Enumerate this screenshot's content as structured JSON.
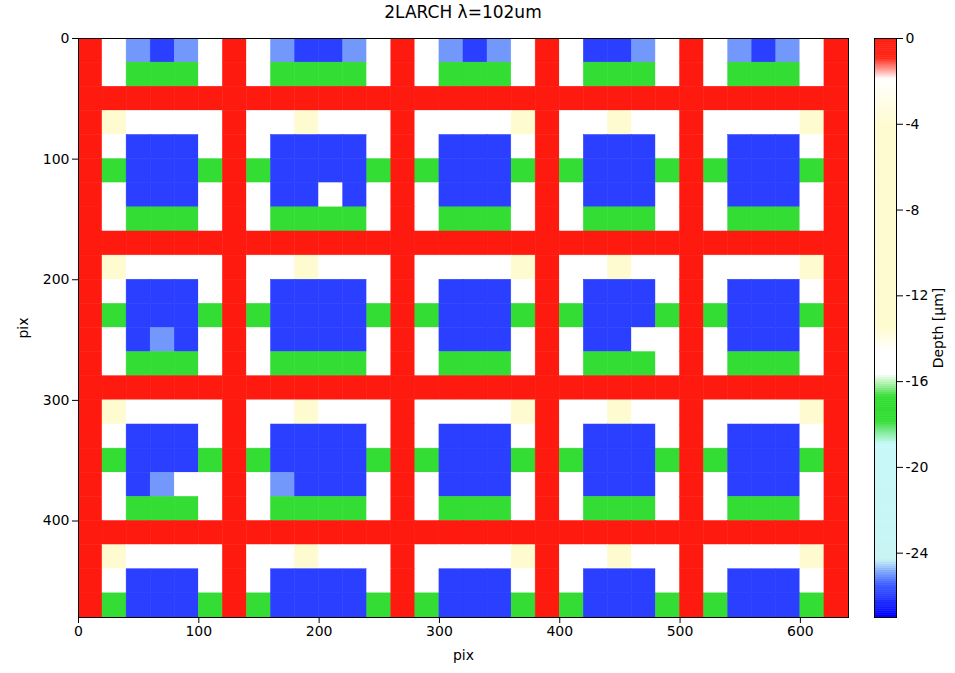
{
  "chart_data": {
    "type": "heatmap",
    "title": "2LARCH λ=102um",
    "xlabel": "pix",
    "ylabel": "pix",
    "xlim": [
      0,
      640
    ],
    "ylim": [
      480,
      0
    ],
    "xticks": [
      0,
      100,
      200,
      300,
      400,
      500,
      600
    ],
    "yticks": [
      0,
      100,
      200,
      300,
      400
    ],
    "cells": [
      [
        0,
        -15,
        -25,
        -26,
        -25,
        -15,
        0,
        -15,
        -25,
        -26,
        -26,
        -25,
        -15,
        0,
        -15,
        -25,
        -26,
        -25,
        -15,
        0,
        -15,
        -26,
        -26,
        -25,
        -15,
        0,
        -15,
        -25,
        -26,
        -25,
        -15,
        0
      ],
      [
        0,
        -15,
        -17,
        -17,
        -17,
        -15,
        0,
        -15,
        -17,
        -17,
        -17,
        -17,
        -15,
        0,
        -15,
        -17,
        -17,
        -17,
        -15,
        0,
        -15,
        -17,
        -17,
        -17,
        -15,
        0,
        -15,
        -17,
        -17,
        -17,
        -15,
        0
      ],
      [
        0,
        0,
        0,
        0,
        0,
        0,
        0,
        0,
        0,
        0,
        0,
        0,
        0,
        0,
        0,
        0,
        0,
        0,
        0,
        0,
        0,
        0,
        0,
        0,
        0,
        0,
        0,
        0,
        0,
        0,
        0,
        0
      ],
      [
        0,
        -8,
        -15,
        -15,
        -15,
        -15,
        0,
        -15,
        -15,
        -8,
        -15,
        -15,
        -15,
        0,
        -15,
        -15,
        -15,
        -15,
        -8,
        0,
        -15,
        -15,
        -8,
        -15,
        -15,
        0,
        -15,
        -15,
        -15,
        -15,
        -8,
        0
      ],
      [
        0,
        -15,
        -26,
        -26,
        -26,
        -15,
        0,
        -15,
        -26,
        -26,
        -26,
        -26,
        -15,
        0,
        -15,
        -26,
        -26,
        -26,
        -15,
        0,
        -15,
        -26,
        -26,
        -26,
        -15,
        0,
        -15,
        -26,
        -26,
        -26,
        -15,
        0
      ],
      [
        0,
        -17,
        -26,
        -26,
        -26,
        -17,
        0,
        -17,
        -26,
        -26,
        -26,
        -26,
        -17,
        0,
        -17,
        -26,
        -26,
        -26,
        -17,
        0,
        -17,
        -26,
        -26,
        -26,
        -17,
        0,
        -17,
        -26,
        -26,
        -26,
        -17,
        0
      ],
      [
        0,
        -15,
        -26,
        -26,
        -26,
        -15,
        0,
        -15,
        -26,
        -26,
        -15,
        -26,
        -15,
        0,
        -15,
        -26,
        -26,
        -26,
        -15,
        0,
        -15,
        -26,
        -26,
        -26,
        -15,
        0,
        -15,
        -26,
        -26,
        -26,
        -15,
        0
      ],
      [
        0,
        -15,
        -17,
        -17,
        -17,
        -15,
        0,
        -15,
        -17,
        -17,
        -17,
        -17,
        -15,
        0,
        -15,
        -17,
        -17,
        -17,
        -15,
        0,
        -15,
        -17,
        -17,
        -17,
        -15,
        0,
        -15,
        -17,
        -17,
        -17,
        -15,
        0
      ],
      [
        0,
        0,
        0,
        0,
        0,
        0,
        0,
        0,
        0,
        0,
        0,
        0,
        0,
        0,
        0,
        0,
        0,
        0,
        0,
        0,
        0,
        0,
        0,
        0,
        0,
        0,
        0,
        0,
        0,
        0,
        0,
        0
      ],
      [
        0,
        -8,
        -15,
        -15,
        -15,
        -15,
        0,
        -15,
        -15,
        -8,
        -15,
        -15,
        -15,
        0,
        -15,
        -15,
        -15,
        -15,
        -8,
        0,
        -15,
        -15,
        -8,
        -15,
        -15,
        0,
        -15,
        -15,
        -15,
        -15,
        -8,
        0
      ],
      [
        0,
        -15,
        -26,
        -26,
        -26,
        -15,
        0,
        -15,
        -26,
        -26,
        -26,
        -26,
        -15,
        0,
        -15,
        -26,
        -26,
        -26,
        -15,
        0,
        -15,
        -26,
        -26,
        -26,
        -15,
        0,
        -15,
        -26,
        -26,
        -26,
        -15,
        0
      ],
      [
        0,
        -17,
        -26,
        -26,
        -26,
        -17,
        0,
        -17,
        -26,
        -26,
        -26,
        -26,
        -17,
        0,
        -17,
        -26,
        -26,
        -26,
        -17,
        0,
        -17,
        -26,
        -26,
        -26,
        -17,
        0,
        -17,
        -26,
        -26,
        -26,
        -17,
        0
      ],
      [
        0,
        -15,
        -26,
        -25,
        -26,
        -15,
        0,
        -15,
        -26,
        -26,
        -26,
        -26,
        -15,
        0,
        -15,
        -26,
        -26,
        -26,
        -15,
        0,
        -15,
        -26,
        -26,
        -15,
        -15,
        0,
        -15,
        -26,
        -26,
        -26,
        -15,
        0
      ],
      [
        0,
        -15,
        -17,
        -17,
        -17,
        -15,
        0,
        -15,
        -17,
        -17,
        -17,
        -17,
        -15,
        0,
        -15,
        -17,
        -17,
        -17,
        -15,
        0,
        -15,
        -17,
        -17,
        -17,
        -15,
        0,
        -15,
        -17,
        -17,
        -17,
        -15,
        0
      ],
      [
        0,
        0,
        0,
        0,
        0,
        0,
        0,
        0,
        0,
        0,
        0,
        0,
        0,
        0,
        0,
        0,
        0,
        0,
        0,
        0,
        0,
        0,
        0,
        0,
        0,
        0,
        0,
        0,
        0,
        0,
        0,
        0
      ],
      [
        0,
        -8,
        -15,
        -15,
        -15,
        -15,
        0,
        -15,
        -15,
        -8,
        -15,
        -15,
        -15,
        0,
        -15,
        -15,
        -15,
        -15,
        -8,
        0,
        -15,
        -15,
        -8,
        -15,
        -15,
        0,
        -15,
        -15,
        -15,
        -15,
        -8,
        0
      ],
      [
        0,
        -15,
        -26,
        -26,
        -26,
        -15,
        0,
        -15,
        -26,
        -26,
        -26,
        -26,
        -15,
        0,
        -15,
        -26,
        -26,
        -26,
        -15,
        0,
        -15,
        -26,
        -26,
        -26,
        -15,
        0,
        -15,
        -26,
        -26,
        -26,
        -15,
        0
      ],
      [
        0,
        -17,
        -26,
        -26,
        -26,
        -17,
        0,
        -17,
        -26,
        -26,
        -26,
        -26,
        -17,
        0,
        -17,
        -26,
        -26,
        -26,
        -17,
        0,
        -17,
        -26,
        -26,
        -26,
        -17,
        0,
        -17,
        -26,
        -26,
        -26,
        -17,
        0
      ],
      [
        0,
        -15,
        -26,
        -25,
        -15,
        -15,
        0,
        -15,
        -25,
        -26,
        -26,
        -26,
        -15,
        0,
        -15,
        -26,
        -26,
        -26,
        -15,
        0,
        -15,
        -26,
        -26,
        -26,
        -15,
        0,
        -15,
        -26,
        -26,
        -26,
        -15,
        0
      ],
      [
        0,
        -15,
        -17,
        -17,
        -17,
        -15,
        0,
        -15,
        -17,
        -17,
        -17,
        -17,
        -15,
        0,
        -15,
        -17,
        -17,
        -17,
        -15,
        0,
        -15,
        -17,
        -17,
        -17,
        -15,
        0,
        -15,
        -17,
        -17,
        -17,
        -15,
        0
      ],
      [
        0,
        0,
        0,
        0,
        0,
        0,
        0,
        0,
        0,
        0,
        0,
        0,
        0,
        0,
        0,
        0,
        0,
        0,
        0,
        0,
        0,
        0,
        0,
        0,
        0,
        0,
        0,
        0,
        0,
        0,
        0,
        0
      ],
      [
        0,
        -8,
        -15,
        -15,
        -15,
        -15,
        0,
        -15,
        -15,
        -8,
        -15,
        -15,
        -15,
        0,
        -15,
        -15,
        -15,
        -15,
        -8,
        0,
        -15,
        -15,
        -8,
        -15,
        -15,
        0,
        -15,
        -15,
        -15,
        -15,
        -8,
        0
      ],
      [
        0,
        -15,
        -26,
        -26,
        -26,
        -15,
        0,
        -15,
        -26,
        -26,
        -26,
        -26,
        -15,
        0,
        -15,
        -26,
        -26,
        -26,
        -15,
        0,
        -15,
        -26,
        -26,
        -26,
        -15,
        0,
        -15,
        -26,
        -26,
        -26,
        -15,
        0
      ],
      [
        0,
        -17,
        -26,
        -26,
        -26,
        -17,
        0,
        -17,
        -26,
        -26,
        -26,
        -26,
        -17,
        0,
        -17,
        -26,
        -26,
        -26,
        -17,
        0,
        -17,
        -26,
        -26,
        -26,
        -17,
        0,
        -17,
        -26,
        -26,
        -26,
        -17,
        0
      ]
    ],
    "colorbar": {
      "label": "Depth [μm]",
      "range": [
        -27,
        0
      ],
      "ticks": [
        0,
        -4,
        -8,
        -12,
        -16,
        -20,
        -24
      ]
    }
  }
}
